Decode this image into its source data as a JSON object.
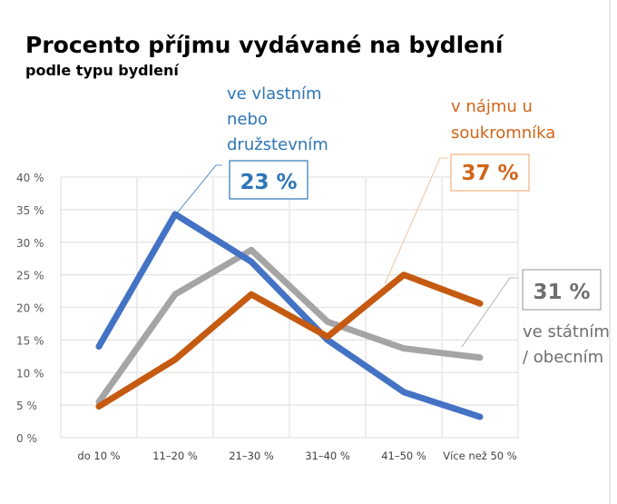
{
  "chart_data": {
    "type": "line",
    "title": "Procento příjmu vydávané na bydlení",
    "subtitle": "podle typu bydlení",
    "categories": [
      "do 10 %",
      "11–20 %",
      "21–30 %",
      "31–40 %",
      "41–50 %",
      "Více než 50  %"
    ],
    "ylim": [
      0,
      40
    ],
    "yticks": [
      "0  %",
      "5  %",
      "10  %",
      "15  %",
      "20  %",
      "25  %",
      "30  %",
      "35  %",
      "40  %"
    ],
    "grid": true,
    "series": [
      {
        "name": "ve vlastním nebo družstevním",
        "label_lines": [
          "ve vlastním",
          "nebo",
          "družstevním"
        ],
        "share": "23 %",
        "color": "#4472C4",
        "label_color": "#2E75B6",
        "values": [
          14,
          34.3,
          27,
          15,
          7,
          3.2
        ]
      },
      {
        "name": "v nájmu u soukromníka",
        "label_lines": [
          "v nájmu u",
          "soukromníka"
        ],
        "share": "37 %",
        "color": "#C55A11",
        "label_color": "#D0661A",
        "values": [
          4.8,
          12,
          22,
          15.5,
          25,
          20.6
        ]
      },
      {
        "name": "ve státním / obecním",
        "label_lines": [
          "ve státním",
          "/ obecním"
        ],
        "share": "31 %",
        "color": "#A5A5A5",
        "label_color": "#6E6E6E",
        "values": [
          5.5,
          22,
          28.8,
          17.8,
          13.7,
          12.3
        ]
      }
    ]
  }
}
